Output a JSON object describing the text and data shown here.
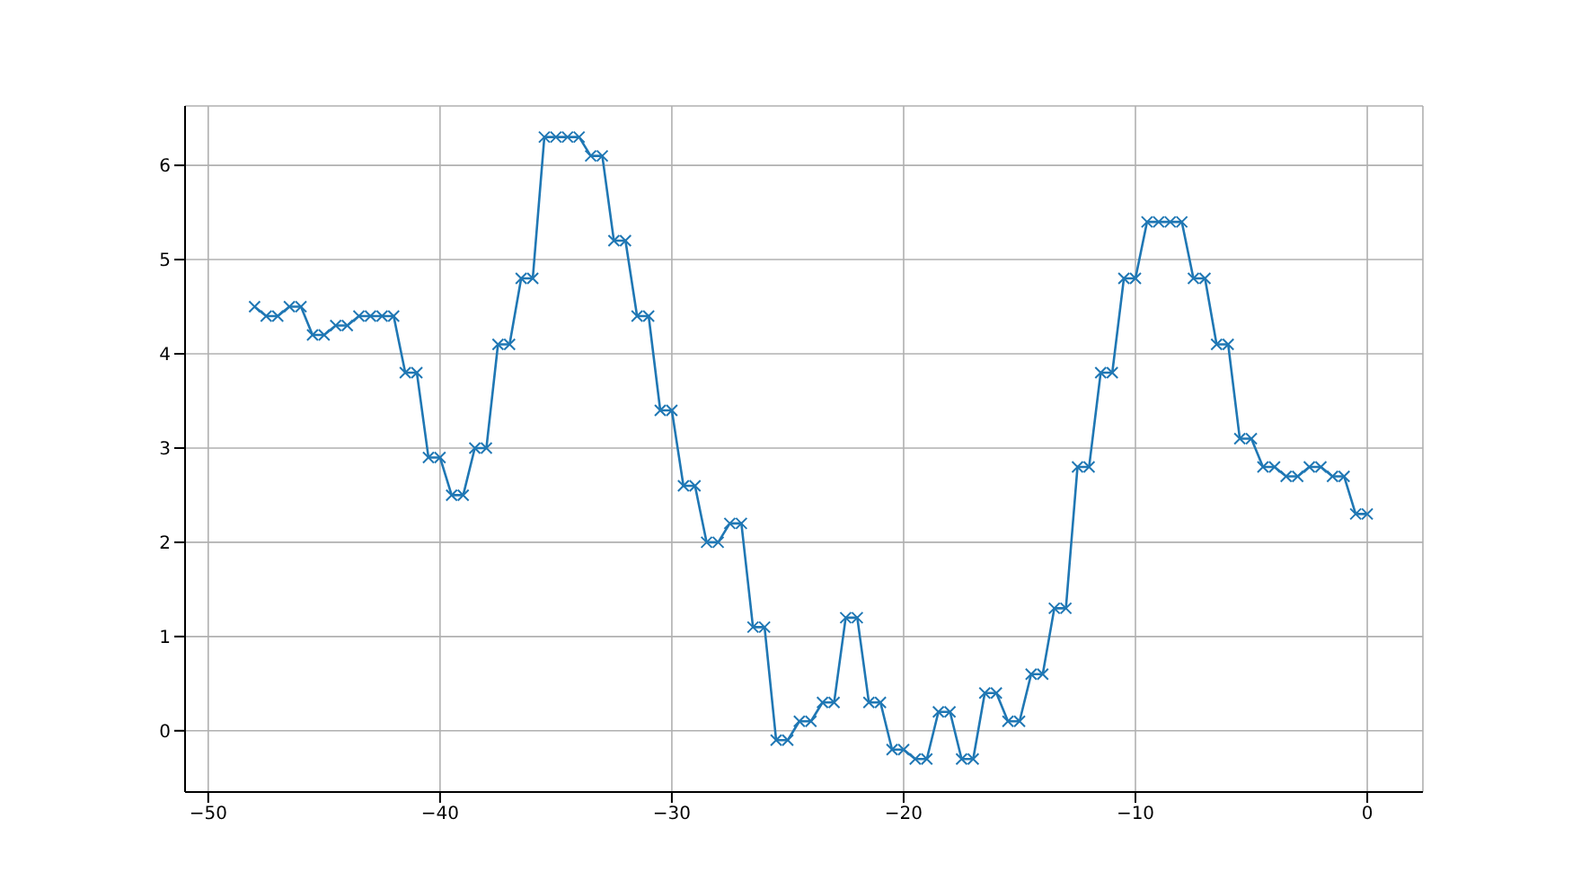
{
  "chart_data": {
    "type": "line",
    "x": [
      -48,
      -47.5,
      -47,
      -46.5,
      -46,
      -45.5,
      -45,
      -44.5,
      -44,
      -43.5,
      -43,
      -42.5,
      -42,
      -41.5,
      -41,
      -40.5,
      -40,
      -39.5,
      -39,
      -38.5,
      -38,
      -37.5,
      -37,
      -36.5,
      -36,
      -35.5,
      -35,
      -34.5,
      -34,
      -33.5,
      -33,
      -32.5,
      -32,
      -31.5,
      -31,
      -30.5,
      -30,
      -29.5,
      -29,
      -28.5,
      -28,
      -27.5,
      -27,
      -26.5,
      -26,
      -25.5,
      -25,
      -24.5,
      -24,
      -23.5,
      -23,
      -22.5,
      -22,
      -21.5,
      -21,
      -20.5,
      -20,
      -19.5,
      -19,
      -18.5,
      -18,
      -17.5,
      -17,
      -16.5,
      -16,
      -15.5,
      -15,
      -14.5,
      -14,
      -13.5,
      -13,
      -12.5,
      -12,
      -11.5,
      -11,
      -10.5,
      -10,
      -9.5,
      -9,
      -8.5,
      -8,
      -7.5,
      -7,
      -6.5,
      -6,
      -5.5,
      -5,
      -4.5,
      -4,
      -3.5,
      -3,
      -2.5,
      -2,
      -1.5,
      -1,
      -0.5,
      0
    ],
    "values": [
      4.5,
      4.4,
      4.4,
      4.5,
      4.5,
      4.2,
      4.2,
      4.3,
      4.3,
      4.4,
      4.4,
      4.4,
      4.4,
      3.8,
      3.8,
      2.9,
      2.9,
      2.5,
      2.5,
      3.0,
      3.0,
      4.1,
      4.1,
      4.8,
      4.8,
      6.3,
      6.3,
      6.3,
      6.3,
      6.1,
      6.1,
      5.2,
      5.2,
      4.4,
      4.4,
      3.4,
      3.4,
      2.6,
      2.6,
      2.0,
      2.0,
      2.2,
      2.2,
      1.1,
      1.1,
      -0.1,
      -0.1,
      0.1,
      0.1,
      0.3,
      0.3,
      1.2,
      1.2,
      0.3,
      0.3,
      -0.2,
      -0.2,
      -0.3,
      -0.3,
      0.2,
      0.2,
      -0.3,
      -0.3,
      0.4,
      0.4,
      0.1,
      0.1,
      0.6,
      0.6,
      1.3,
      1.3,
      2.8,
      2.8,
      3.8,
      3.8,
      4.8,
      4.8,
      5.4,
      5.4,
      5.4,
      5.4,
      4.8,
      4.8,
      4.1,
      4.1,
      3.1,
      3.1,
      2.8,
      2.8,
      2.7,
      2.7,
      2.8,
      2.8,
      2.7,
      2.7,
      2.3,
      2.3
    ],
    "color": "#1f77b4",
    "marker": "cross",
    "grid": true,
    "xlim": [
      -51,
      2.4
    ],
    "xticks": [
      -50,
      -40,
      -30,
      -20,
      -10,
      0
    ],
    "ylim": [
      -0.65,
      6.63
    ],
    "yticks": [
      0,
      1,
      2,
      3,
      4,
      5,
      6
    ]
  }
}
